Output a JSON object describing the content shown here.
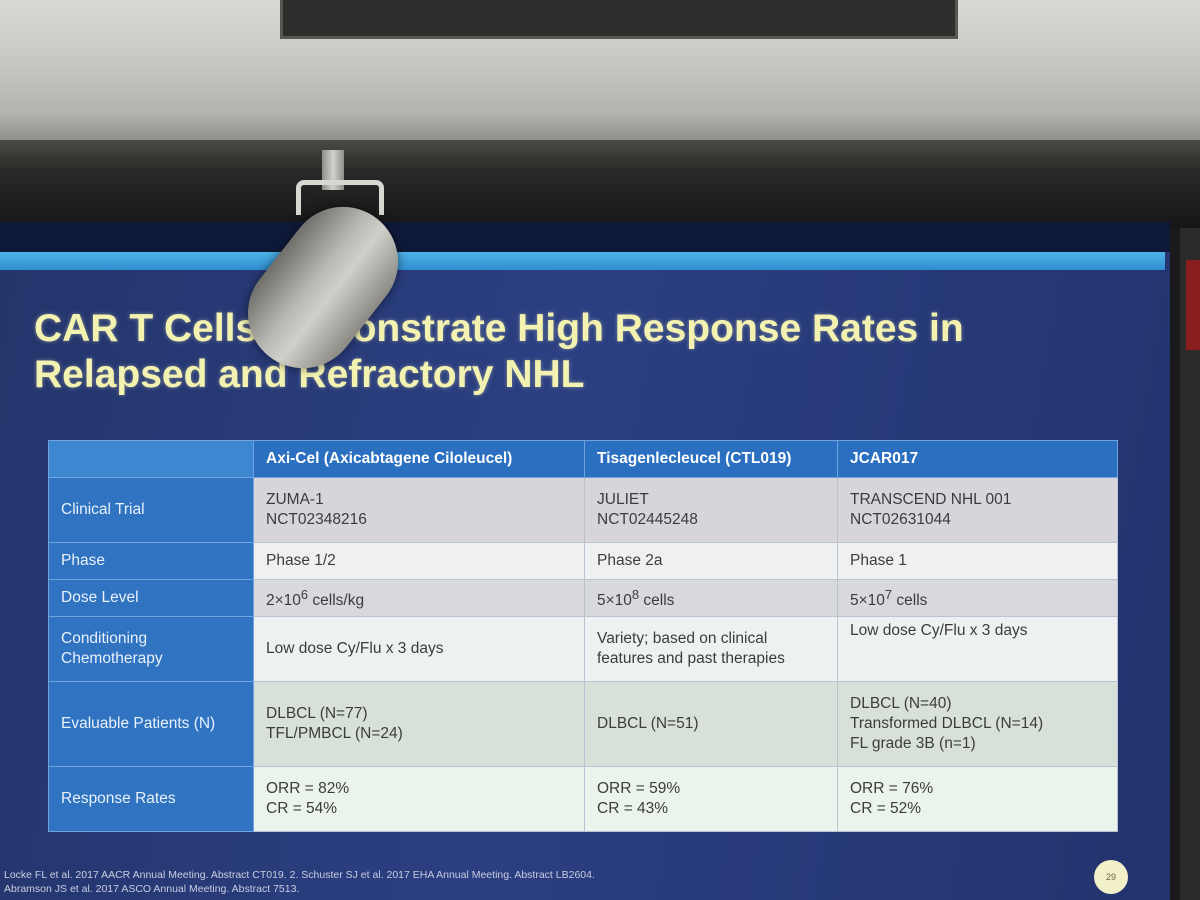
{
  "slide": {
    "title_line1": "CAR T Cells Demonstrate High Response Rates in",
    "title_line2": "Relapsed and Refractory NHL",
    "page_number": "29",
    "footnote_line1": "Locke FL et al. 2017 AACR Annual Meeting. Abstract CT019.  2. Schuster SJ et al. 2017 EHA Annual Meeting. Abstract LB2604.",
    "footnote_line2": "Abramson JS et al. 2017 ASCO Annual Meeting. Abstract 7513."
  },
  "table": {
    "headers": [
      "",
      "Axi-Cel (Axicabtagene Ciloleucel)",
      "Tisagenlecleucel (CTL019)",
      "JCAR017"
    ],
    "rows": [
      {
        "label": "Clinical Trial",
        "cells": [
          [
            "ZUMA-1",
            "NCT02348216"
          ],
          [
            "JULIET",
            "NCT02445248"
          ],
          [
            "TRANSCEND NHL 001",
            "NCT02631044"
          ]
        ]
      },
      {
        "label": "Phase",
        "cells": [
          [
            "Phase 1/2"
          ],
          [
            "Phase 2a"
          ],
          [
            "Phase 1"
          ]
        ]
      },
      {
        "label": "Dose Level",
        "cells": [
          [
            {
              "base": "2×10",
              "sup": "6",
              "rest": " cells/kg"
            }
          ],
          [
            {
              "base": "5×10",
              "sup": "8",
              "rest": " cells"
            }
          ],
          [
            {
              "base": "5×10",
              "sup": "7",
              "rest": " cells"
            }
          ]
        ]
      },
      {
        "label_line1": "Conditioning",
        "label_line2": "Chemotherapy",
        "cells": [
          [
            "Low dose Cy/Flu x 3 days"
          ],
          [
            "Variety; based on clinical",
            "features and past therapies"
          ],
          [
            "Low dose Cy/Flu x 3 days"
          ]
        ]
      },
      {
        "label": "Evaluable Patients (N)",
        "cells": [
          [
            "DLBCL (N=77)",
            "TFL/PMBCL (N=24)"
          ],
          [
            "DLBCL (N=51)"
          ],
          [
            "DLBCL (N=40)",
            "Transformed DLBCL (N=14)",
            "FL grade 3B (n=1)"
          ]
        ]
      },
      {
        "label": "Response Rates",
        "cells": [
          [
            "ORR = 82%",
            "CR = 54%"
          ],
          [
            "ORR = 59%",
            "CR = 43%"
          ],
          [
            "ORR = 76%",
            "CR = 52%"
          ]
        ]
      }
    ]
  }
}
